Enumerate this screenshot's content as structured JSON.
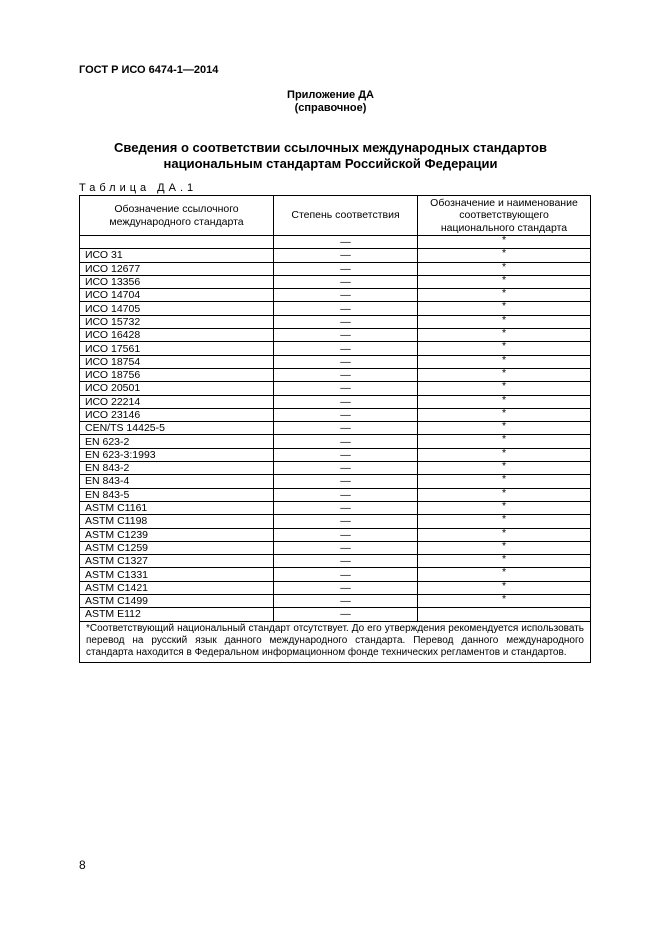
{
  "header": "ГОСТ Р ИСО 6474-1—2014",
  "annex": {
    "title": "Приложение ДА",
    "subtitle": "(справочное)"
  },
  "title": [
    "Сведения о  соответствии ссылочных международных стандартов",
    "национальным стандартам Российской Федерации"
  ],
  "table_caption": "Таблица ДА.1",
  "columns": [
    "Обозначение ссылочного международного стандарта",
    "Степень соответствия",
    "Обозначение и наименование соответствующего национального стандарта"
  ],
  "rows": [
    [
      "",
      "—",
      "*"
    ],
    [
      "ИСО 31",
      "—",
      "*"
    ],
    [
      "ИСО 12677",
      "—",
      "*"
    ],
    [
      "ИСО 13356",
      "—",
      "*"
    ],
    [
      "ИСО 14704",
      "—",
      "*"
    ],
    [
      "ИСО 14705",
      "—",
      "*"
    ],
    [
      "ИСО 15732",
      "—",
      "*"
    ],
    [
      "ИСО 16428",
      "—",
      "*"
    ],
    [
      "ИСО 17561",
      "—",
      "*"
    ],
    [
      "ИСО 18754",
      "—",
      "*"
    ],
    [
      "ИСО 18756",
      "—",
      "*"
    ],
    [
      "ИСО 20501",
      "—",
      "*"
    ],
    [
      "ИСО 22214",
      "—",
      "*"
    ],
    [
      "ИСО 23146",
      "—",
      "*"
    ],
    [
      "CEN/TS 14425-5",
      "—",
      "*"
    ],
    [
      "EN 623-2",
      "—",
      "*"
    ],
    [
      "EN 623-3:1993",
      "—",
      "*"
    ],
    [
      "EN 843-2",
      "—",
      "*"
    ],
    [
      "EN 843-4",
      "—",
      "*"
    ],
    [
      "EN 843-5",
      "—",
      "*"
    ],
    [
      "ASTM C1161",
      "—",
      "*"
    ],
    [
      "ASTM C1198",
      "—",
      "*"
    ],
    [
      "ASTM C1239",
      "—",
      "*"
    ],
    [
      "ASTM C1259",
      "—",
      "*"
    ],
    [
      "ASTM C1327",
      "—",
      "*"
    ],
    [
      "ASTM C1331",
      "—",
      "*"
    ],
    [
      "ASTM C1421",
      "—",
      "*"
    ],
    [
      "ASTM C1499",
      "—",
      "*"
    ],
    [
      "ASTM E112",
      "—",
      ""
    ]
  ],
  "footnote": "*Соответствующий национальный стандарт отсутствует. До его утверждения рекомендуется использовать перевод на русский язык данного международного стандарта. Перевод данного международного стандарта находится в Федеральном информационном фонде технических регламентов и стандартов.",
  "page_number": "8"
}
